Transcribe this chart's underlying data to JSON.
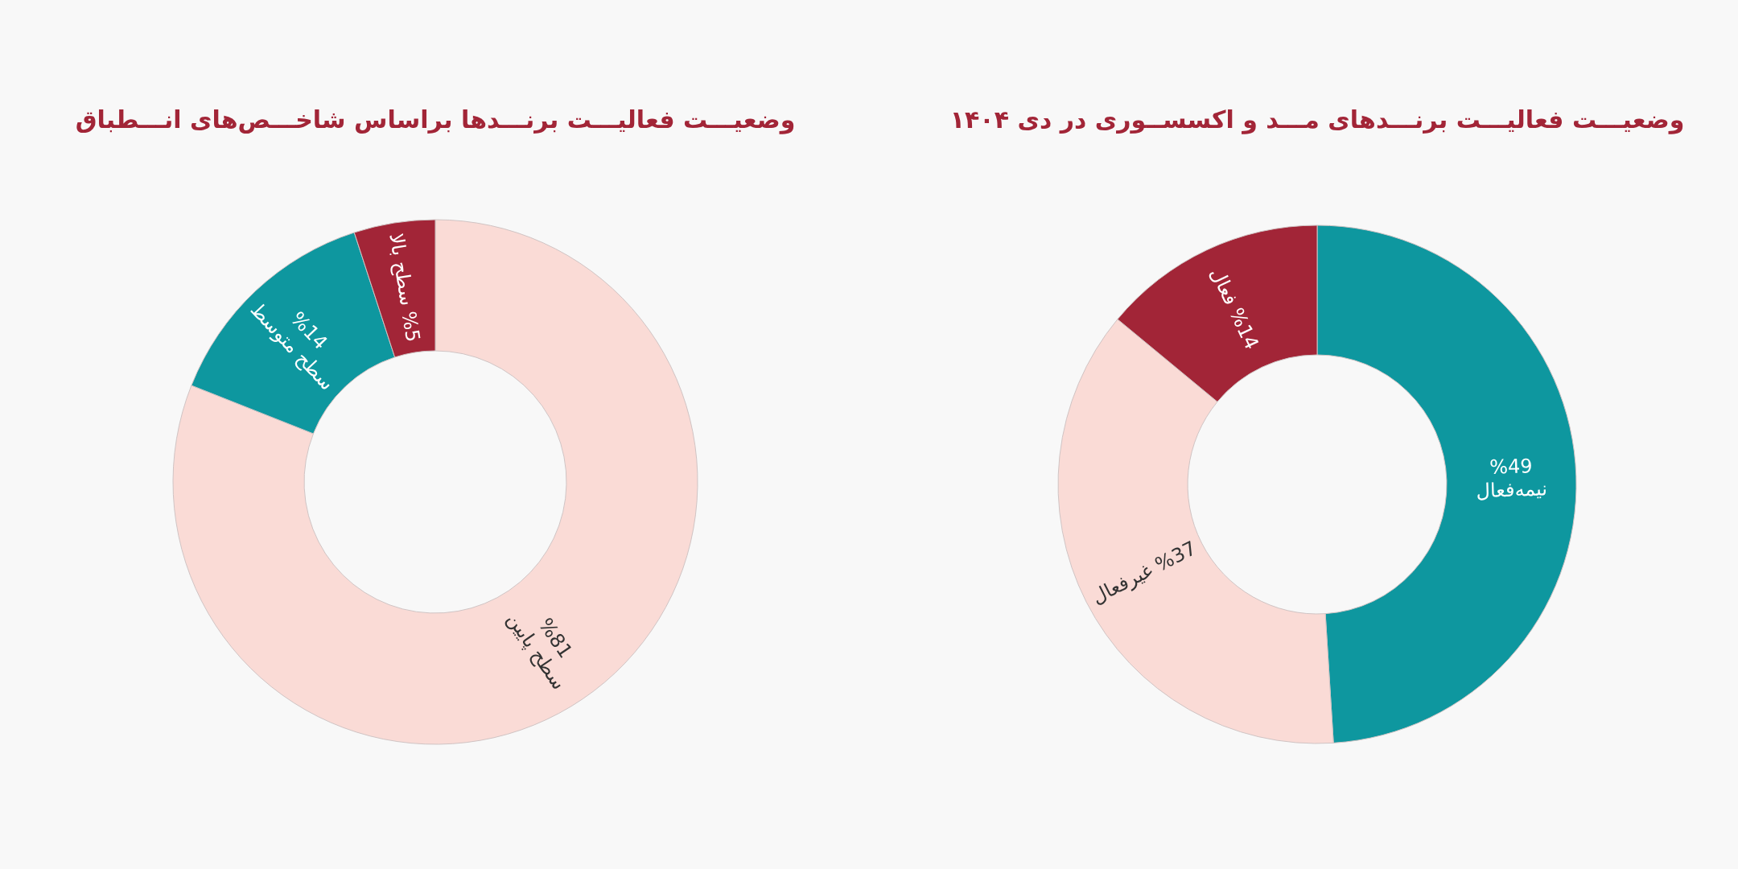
{
  "chart_data": [
    {
      "type": "donut",
      "title": "وضعیـــت فعالیـــت برنـــدها براساس شاخـــص‌های انـــطباق",
      "categories": [
        "سطح پایین",
        "سطح متوسط",
        "سطح بالا"
      ],
      "values": [
        81,
        14,
        5
      ],
      "colors": [
        "#fadbd6",
        "#0e979f",
        "#a22537"
      ],
      "value_labels": [
        "%81",
        "%14",
        "%5"
      ]
    },
    {
      "type": "donut",
      "title": "وضعیـــت فعالیـــت برنـــدهای مـــد و اکسســوری در دی ۱۴۰۴",
      "categories": [
        "نیمه‌فعال",
        "غیرفعال",
        "فعال"
      ],
      "values": [
        49,
        37,
        14
      ],
      "colors": [
        "#0e979f",
        "#fadbd6",
        "#a22537"
      ],
      "value_labels": [
        "%49",
        "%37",
        "%14"
      ]
    }
  ]
}
